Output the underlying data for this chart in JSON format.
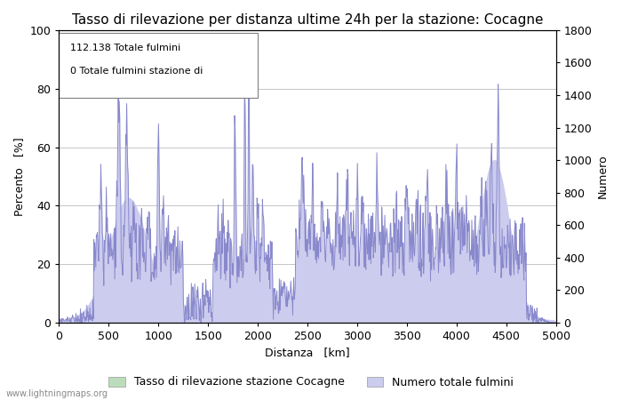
{
  "title": "Tasso di rilevazione per distanza ultime 24h per la stazione: Cocagne",
  "xlabel": "Distanza   [km]",
  "ylabel_left": "Percento   [%]",
  "ylabel_right": "Numero",
  "annotation_line1": "112.138 Totale fulmini",
  "annotation_line2": "0 Totale fulmini stazione di",
  "xlim": [
    0,
    5000
  ],
  "ylim_left": [
    0,
    100
  ],
  "ylim_right": [
    0,
    1800
  ],
  "xticks": [
    0,
    500,
    1000,
    1500,
    2000,
    2500,
    3000,
    3500,
    4000,
    4500,
    5000
  ],
  "yticks_left": [
    0,
    20,
    40,
    60,
    80,
    100
  ],
  "yticks_right": [
    0,
    200,
    400,
    600,
    800,
    1000,
    1200,
    1400,
    1600,
    1800
  ],
  "legend_label_green": "Tasso di rilevazione stazione Cocagne",
  "legend_label_blue": "Numero totale fulmini",
  "line_color": "#8888cc",
  "fill_green_color": "#bbddbb",
  "fill_blue_color": "#ccccee",
  "bg_color": "#ffffff",
  "grid_color": "#bbbbbb",
  "watermark": "www.lightningmaps.org",
  "title_fontsize": 11,
  "axis_fontsize": 9,
  "tick_fontsize": 9,
  "legend_fontsize": 9
}
